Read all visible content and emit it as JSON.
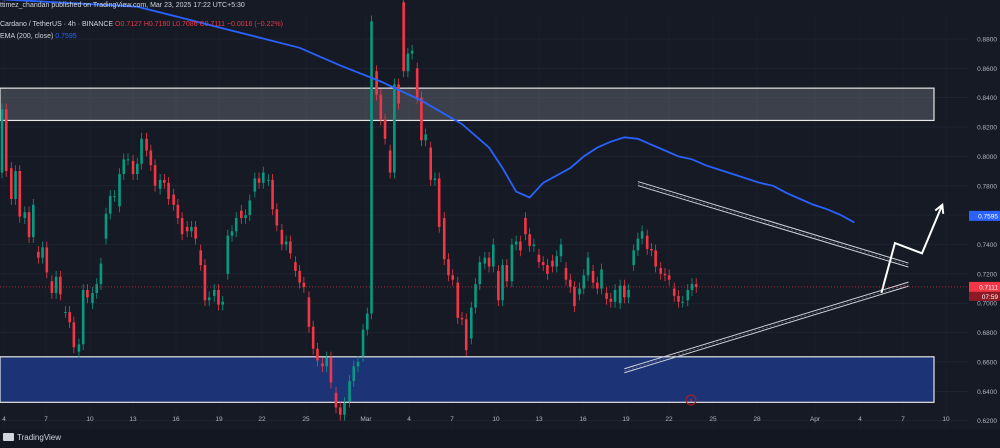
{
  "header": {
    "published": "ttimez_chandan published on TradingView.com, Mar 23, 2025 17:22 UTC+5:30",
    "symbol": "Cardano / TetherUS · 4h · BINANCE",
    "ohlc_o": "O0.7127",
    "ohlc_h": "H0.7160",
    "ohlc_l": "L0.7086",
    "ohlc_c": "C0.7111",
    "change": "−0.0016 (−0.22%)",
    "ema_label": "EMA (200, close)",
    "ema_value": "0.7595"
  },
  "price_tags": {
    "ema": "0.7595",
    "last": "0.7111",
    "countdown": "07:59"
  },
  "footer": {
    "brand": "TradingView"
  },
  "colors": {
    "background": "#161a25",
    "up": "#089981",
    "down": "#f23645",
    "ema": "#2962ff",
    "zone_top_fill": "#5d606b",
    "zone_bottom_fill": "#1e3a8a",
    "text": "#b2b5be"
  },
  "chart_data": {
    "type": "candlestick",
    "title": "",
    "ylim": [
      0.615,
      0.897
    ],
    "y_ticks": [
      "0.8800",
      "0.8600",
      "0.8400",
      "0.8200",
      "0.8000",
      "0.7800",
      "0.7600",
      "0.7400",
      "0.7200",
      "0.7000",
      "0.6800",
      "0.6600",
      "0.6400",
      "0.6200"
    ],
    "x_ticks": [
      "4",
      "7",
      "10",
      "13",
      "16",
      "19",
      "22",
      "25",
      "Mar",
      "4",
      "7",
      "10",
      "13",
      "16",
      "19",
      "22",
      "25",
      "28",
      "Apr",
      "4",
      "7",
      "10"
    ],
    "zones": [
      {
        "name": "supply",
        "from": 0.8245,
        "to": 0.8465
      },
      {
        "name": "demand",
        "from": 0.6325,
        "to": 0.6635
      }
    ],
    "ema_200": [
      [
        0,
        0.907
      ],
      [
        10,
        0.902
      ],
      [
        13,
        0.895
      ],
      [
        16,
        0.888
      ],
      [
        19,
        0.881
      ],
      [
        22,
        0.874
      ],
      [
        25,
        0.862
      ],
      [
        28,
        0.851
      ],
      [
        31,
        0.838
      ],
      [
        34,
        0.822
      ],
      [
        36,
        0.806
      ],
      [
        37,
        0.792
      ],
      [
        38,
        0.776
      ],
      [
        39,
        0.772
      ],
      [
        40,
        0.782
      ],
      [
        41,
        0.787
      ],
      [
        42,
        0.792
      ],
      [
        43,
        0.8
      ],
      [
        44,
        0.806
      ],
      [
        45,
        0.81
      ],
      [
        46,
        0.813
      ],
      [
        47,
        0.812
      ],
      [
        48,
        0.808
      ],
      [
        49,
        0.804
      ],
      [
        50,
        0.8
      ],
      [
        51,
        0.798
      ],
      [
        52,
        0.794
      ],
      [
        53,
        0.791
      ],
      [
        54,
        0.788
      ],
      [
        55,
        0.785
      ],
      [
        56,
        0.782
      ],
      [
        57,
        0.78
      ],
      [
        58,
        0.775
      ],
      [
        59,
        0.771
      ],
      [
        60,
        0.767
      ],
      [
        61,
        0.764
      ],
      [
        62,
        0.76
      ],
      [
        63,
        0.755
      ]
    ],
    "triangle_upper": [
      [
        0.7815,
        47
      ],
      [
        0.726,
        67
      ]
    ],
    "triangle_lower": [
      [
        0.654,
        46
      ],
      [
        0.713,
        67
      ]
    ],
    "projection": [
      [
        0.707,
        65
      ],
      [
        0.741,
        66
      ],
      [
        0.734,
        68
      ],
      [
        0.767,
        69.5
      ]
    ],
    "markers": [
      {
        "label": "lightning",
        "x_tick": "22"
      }
    ],
    "candles": [
      [
        0.818,
        0.789,
        0.832,
        0.79
      ],
      [
        0.792,
        0.771,
        0.79,
        0.759
      ],
      [
        0.758,
        0.762,
        0.745,
        0.767
      ],
      [
        0.735,
        0.731,
        0.738,
        0.721
      ],
      [
        0.715,
        0.707,
        0.718,
        0.706
      ],
      [
        0.694,
        0.694,
        0.687,
        0.67
      ],
      [
        0.667,
        0.672,
        0.709,
        0.704
      ],
      [
        0.7,
        0.707,
        0.713,
        0.727
      ],
      [
        0.744,
        0.761,
        0.773,
        0.773
      ],
      [
        0.766,
        0.788,
        0.798,
        0.798
      ],
      [
        0.797,
        0.788,
        0.795,
        0.812
      ],
      [
        0.812,
        0.804,
        0.794,
        0.78
      ],
      [
        0.778,
        0.784,
        0.782,
        0.771
      ],
      [
        0.774,
        0.767,
        0.758,
        0.747
      ],
      [
        0.752,
        0.749,
        0.752,
        0.744
      ],
      [
        0.736,
        0.726,
        0.702,
        0.704
      ],
      [
        0.705,
        0.709,
        0.699,
        0.701
      ],
      [
        0.72,
        0.746,
        0.749,
        0.758
      ],
      [
        0.763,
        0.758,
        0.76,
        0.77
      ],
      [
        0.776,
        0.785,
        0.782,
        0.789
      ],
      [
        0.784,
        0.784,
        0.764,
        0.753
      ],
      [
        0.75,
        0.74,
        0.742,
        0.734
      ],
      [
        0.728,
        0.722,
        0.714,
        0.711
      ],
      [
        0.704,
        0.684,
        0.669,
        0.661
      ],
      [
        0.659,
        0.657,
        0.663,
        0.646
      ],
      [
        0.639,
        0.629,
        0.624,
        0.632
      ],
      [
        0.633,
        0.647,
        0.657,
        0.66
      ],
      [
        0.664,
        0.682,
        0.693,
        0.892
      ],
      [
        0.858,
        0.842,
        0.825,
        0.812
      ],
      [
        0.804,
        0.789,
        0.849,
        0.836
      ],
      [
        0.905,
        0.858,
        0.87,
        0.872
      ],
      [
        0.86,
        0.84,
        0.811,
        0.815
      ],
      [
        0.806,
        0.784,
        0.785,
        0.752
      ],
      [
        0.758,
        0.73,
        0.719,
        0.716
      ],
      [
        0.714,
        0.69,
        0.689,
        0.668
      ],
      [
        0.676,
        0.697,
        0.713,
        0.728
      ],
      [
        0.727,
        0.731,
        0.725,
        0.74
      ],
      [
        0.722,
        0.702,
        0.726,
        0.715
      ],
      [
        0.715,
        0.74,
        0.742,
        0.736
      ],
      [
        0.758,
        0.747,
        0.739,
        0.74
      ],
      [
        0.733,
        0.728,
        0.726,
        0.72
      ],
      [
        0.729,
        0.725,
        0.732,
        0.74
      ],
      [
        0.724,
        0.716,
        0.711,
        0.698
      ],
      [
        0.706,
        0.71,
        0.719,
        0.731
      ],
      [
        0.722,
        0.714,
        0.71,
        0.723
      ],
      [
        0.707,
        0.703,
        0.701,
        0.709
      ],
      [
        0.7,
        0.712,
        0.704,
        0.709
      ],
      [
        0.726,
        0.736,
        0.744,
        0.749
      ],
      [
        0.746,
        0.737,
        0.736,
        0.725
      ],
      [
        0.724,
        0.72,
        0.719,
        0.716
      ],
      [
        0.71,
        0.705,
        0.701,
        0.701
      ],
      [
        0.702,
        0.709,
        0.713,
        0.711
      ]
    ]
  }
}
